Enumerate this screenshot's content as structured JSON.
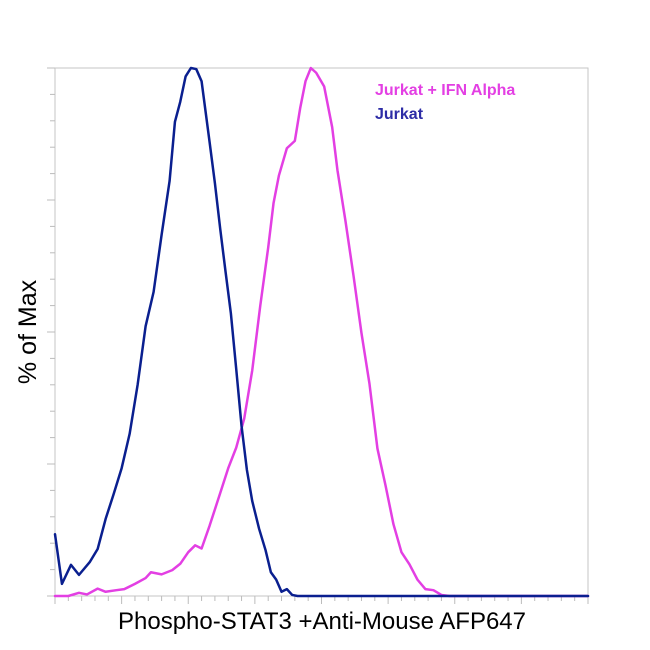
{
  "chart_data": {
    "type": "line",
    "title": "",
    "xlabel": "Phospho-STAT3 +Anti-Mouse AFP647",
    "ylabel": "% of Max",
    "xlim": [
      0,
      100
    ],
    "ylim": [
      0,
      100
    ],
    "grid": false,
    "legend_position": "top-right",
    "series": [
      {
        "name": "Jurkat + IFN Alpha",
        "color": "#e33fe3",
        "points": [
          [
            0,
            0
          ],
          [
            2.5,
            0
          ],
          [
            4.5,
            0.6
          ],
          [
            6,
            0.3
          ],
          [
            8,
            1.4
          ],
          [
            9.5,
            0.8
          ],
          [
            11.5,
            1.1
          ],
          [
            13,
            1.3
          ],
          [
            15,
            2.3
          ],
          [
            17,
            3.4
          ],
          [
            18,
            4.5
          ],
          [
            20,
            4.1
          ],
          [
            22,
            4.9
          ],
          [
            23.5,
            6.1
          ],
          [
            25,
            8.3
          ],
          [
            26.3,
            9.6
          ],
          [
            27.5,
            9.0
          ],
          [
            29,
            13.3
          ],
          [
            31,
            19.5
          ],
          [
            32.5,
            24.2
          ],
          [
            34,
            28.1
          ],
          [
            35.5,
            33.6
          ],
          [
            37,
            42.7
          ],
          [
            38.5,
            54.9
          ],
          [
            40,
            66.0
          ],
          [
            41,
            74.4
          ],
          [
            42,
            79.6
          ],
          [
            43.5,
            84.8
          ],
          [
            45,
            86.2
          ],
          [
            46,
            92.4
          ],
          [
            47,
            97.5
          ],
          [
            48,
            100
          ],
          [
            49,
            99.1
          ],
          [
            50.5,
            96.5
          ],
          [
            52,
            88.8
          ],
          [
            53,
            80.6
          ],
          [
            54.5,
            71.0
          ],
          [
            56,
            60.7
          ],
          [
            57.5,
            49.8
          ],
          [
            59,
            40.2
          ],
          [
            60.5,
            27.9
          ],
          [
            62,
            21.0
          ],
          [
            63.5,
            13.6
          ],
          [
            65,
            8.3
          ],
          [
            66.5,
            6.0
          ],
          [
            68,
            3.1
          ],
          [
            69.5,
            1.3
          ],
          [
            71,
            1.1
          ],
          [
            72.5,
            0.2
          ],
          [
            74,
            0
          ],
          [
            100,
            0
          ]
        ]
      },
      {
        "name": "Jurkat",
        "color": "#0a1f8f",
        "points": [
          [
            0,
            11.7
          ],
          [
            1.3,
            2.3
          ],
          [
            3,
            5.9
          ],
          [
            4.5,
            4.0
          ],
          [
            6.5,
            6.4
          ],
          [
            8,
            8.9
          ],
          [
            9.5,
            14.6
          ],
          [
            11,
            19.3
          ],
          [
            12.5,
            24.2
          ],
          [
            14,
            30.7
          ],
          [
            15.5,
            40.0
          ],
          [
            17,
            51.1
          ],
          [
            18.5,
            57.6
          ],
          [
            20,
            68.4
          ],
          [
            21.5,
            78.6
          ],
          [
            22.5,
            89.8
          ],
          [
            23.5,
            93.6
          ],
          [
            24.5,
            98.4
          ],
          [
            25.5,
            100
          ],
          [
            26.5,
            99.8
          ],
          [
            27.5,
            97.5
          ],
          [
            29,
            86.0
          ],
          [
            30,
            78.2
          ],
          [
            31,
            69.5
          ],
          [
            32,
            61.4
          ],
          [
            33,
            53.5
          ],
          [
            34,
            43.0
          ],
          [
            35,
            32.2
          ],
          [
            36,
            23.9
          ],
          [
            37,
            18.0
          ],
          [
            38.3,
            12.7
          ],
          [
            39.5,
            8.7
          ],
          [
            40.5,
            4.5
          ],
          [
            41.5,
            3.1
          ],
          [
            42.5,
            0.8
          ],
          [
            43.5,
            1.3
          ],
          [
            44.5,
            0.2
          ],
          [
            45.5,
            0
          ],
          [
            100,
            0
          ]
        ]
      }
    ]
  }
}
